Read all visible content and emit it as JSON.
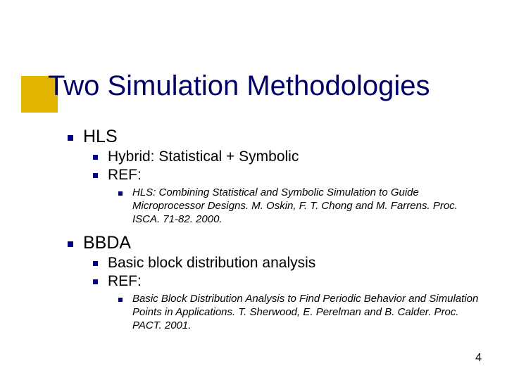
{
  "accent_color": "#e3b400",
  "bullet_color": "#000080",
  "title_color": "#000066",
  "title": "Two Simulation Methodologies",
  "section1": {
    "heading": "HLS",
    "item1": "Hybrid: Statistical + Symbolic",
    "item2": "REF:",
    "ref": "HLS: Combining Statistical and Symbolic Simulation to Guide Microprocessor Designs.  M. Oskin, F. T. Chong and M. Farrens.  Proc. ISCA. 71-82. 2000."
  },
  "section2": {
    "heading": "BBDA",
    "item1": "Basic block distribution analysis",
    "item2": "REF:",
    "ref": "Basic Block Distribution Analysis to Find Periodic Behavior and Simulation Points in Applications.  T. Sherwood, E. Perelman and B. Calder.  Proc. PACT. 2001."
  },
  "page_number": "4"
}
